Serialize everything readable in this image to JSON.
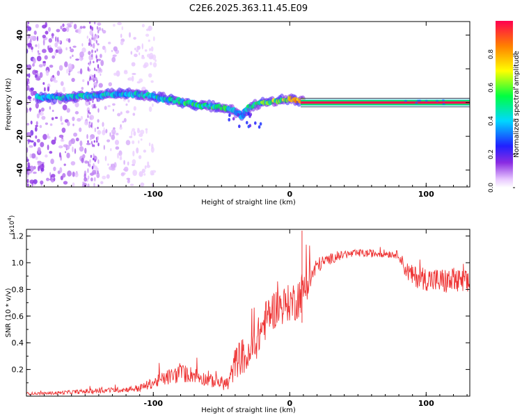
{
  "chart_data": [
    {
      "type": "heatmap",
      "title": "C2E6.2025.363.11.45.E09",
      "xlabel": "Height of straight line (km)",
      "ylabel": "Frequency (Hz)",
      "xlim": [
        -193,
        132
      ],
      "ylim": [
        -50,
        48
      ],
      "xticks": [
        "-100",
        "0",
        "100"
      ],
      "xtick_values": [
        -100,
        0,
        100
      ],
      "yticks": [
        "-40",
        "-20",
        "0",
        "20",
        "40"
      ],
      "ytick_values": [
        -40,
        -20,
        0,
        20,
        40
      ],
      "colorbar": {
        "label": "Normalized spectral amplitude",
        "ticks": [
          "0.0",
          "0.2",
          "0.4",
          "0.6",
          "0.8"
        ],
        "tick_values": [
          0.0,
          0.2,
          0.4,
          0.6,
          0.8
        ],
        "range": [
          0,
          1
        ]
      },
      "ridge": {
        "x": [
          -170,
          -150,
          -130,
          -110,
          -90,
          -70,
          -50,
          -40,
          -35,
          -30,
          -20,
          -10,
          0,
          10,
          132
        ],
        "freq": [
          3,
          4,
          5,
          5,
          2,
          -1,
          -3,
          -5,
          -8,
          -3,
          0,
          1,
          2,
          1,
          0
        ],
        "amplitude": [
          0.5,
          0.5,
          0.5,
          0.5,
          0.55,
          0.6,
          0.6,
          0.55,
          0.5,
          0.6,
          0.7,
          0.75,
          0.85,
          0.95,
          1.0
        ]
      }
    },
    {
      "type": "line",
      "xlabel": "Height of straight line (km)",
      "ylabel": "SNR (10 * v/v)",
      "y_scale_note": "(x10",
      "y_scale_exp": "4",
      "y_scale_close": ")",
      "xlim": [
        -193,
        132
      ],
      "ylim": [
        0,
        1.25
      ],
      "xticks": [
        "-100",
        "0",
        "100"
      ],
      "xtick_values": [
        -100,
        0,
        100
      ],
      "yticks": [
        "0.2",
        "0.4",
        "0.6",
        "0.8",
        "1.0",
        "1.2"
      ],
      "ytick_values": [
        0.2,
        0.4,
        0.6,
        0.8,
        1.0,
        1.2
      ],
      "series": [
        {
          "name": "SNR",
          "color": "#ee3333",
          "x": [
            -193,
            -180,
            -160,
            -140,
            -120,
            -110,
            -100,
            -90,
            -80,
            -70,
            -60,
            -50,
            -45,
            -40,
            -35,
            -30,
            -25,
            -20,
            -15,
            -10,
            -5,
            0,
            5,
            10,
            15,
            20,
            30,
            40,
            50,
            60,
            70,
            80,
            85,
            90,
            100,
            110,
            120,
            132
          ],
          "y": [
            0.02,
            0.02,
            0.03,
            0.04,
            0.05,
            0.06,
            0.1,
            0.14,
            0.17,
            0.16,
            0.12,
            0.1,
            0.09,
            0.25,
            0.3,
            0.28,
            0.4,
            0.52,
            0.62,
            0.66,
            0.68,
            0.7,
            0.72,
            0.8,
            0.88,
            0.98,
            1.03,
            1.06,
            1.07,
            1.07,
            1.07,
            1.06,
            0.95,
            0.9,
            0.88,
            0.86,
            0.86,
            0.84
          ],
          "noise": [
            0.01,
            0.01,
            0.015,
            0.02,
            0.02,
            0.03,
            0.04,
            0.06,
            0.07,
            0.06,
            0.05,
            0.05,
            0.06,
            0.12,
            0.14,
            0.12,
            0.14,
            0.15,
            0.15,
            0.15,
            0.14,
            0.14,
            0.16,
            0.15,
            0.1,
            0.06,
            0.04,
            0.03,
            0.03,
            0.03,
            0.03,
            0.03,
            0.07,
            0.08,
            0.09,
            0.1,
            0.1,
            0.1
          ]
        }
      ]
    }
  ]
}
